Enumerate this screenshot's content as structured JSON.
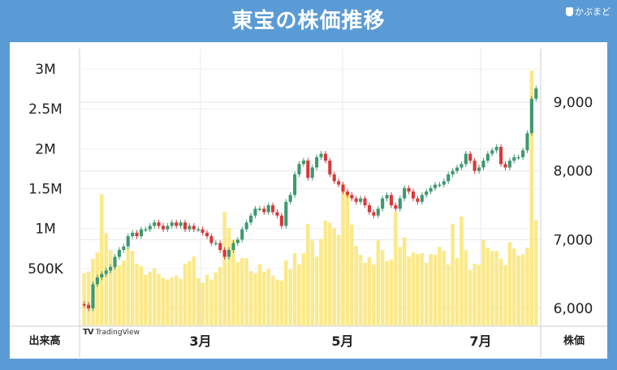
{
  "title": "東宝の株価推移",
  "brand": "かぶまど",
  "footer": {
    "left": "出来高",
    "right": "株価",
    "tradingview": "TradingView"
  },
  "colors": {
    "background": "#5b9bd5",
    "up": "#3d9970",
    "down": "#d9383a",
    "volume": "#fbe98a"
  },
  "chart_data": {
    "type": "candlestick",
    "x_ticks": [
      "3月",
      "5月",
      "7月"
    ],
    "price_axis": {
      "ticks": [
        "6,000",
        "7,000",
        "8,000",
        "9,000"
      ],
      "range": [
        5950,
        9600
      ]
    },
    "volume_axis": {
      "ticks": [
        "500K",
        "1M",
        "1.5M",
        "2M",
        "2.5M",
        "3M"
      ],
      "range": [
        0,
        3200000
      ]
    },
    "grid": true,
    "close": [
      6050,
      6000,
      6350,
      6450,
      6500,
      6550,
      6600,
      6750,
      6850,
      6900,
      7050,
      7100,
      7050,
      7150,
      7150,
      7200,
      7250,
      7200,
      7150,
      7200,
      7250,
      7200,
      7250,
      7150,
      7200,
      7150,
      7150,
      7100,
      7050,
      6950,
      6950,
      6850,
      6750,
      6850,
      6950,
      7000,
      7150,
      7250,
      7350,
      7450,
      7450,
      7400,
      7500,
      7400,
      7350,
      7200,
      7550,
      7650,
      7950,
      8100,
      8150,
      7900,
      8050,
      8200,
      8250,
      8150,
      7950,
      7850,
      7800,
      7700,
      7650,
      7600,
      7550,
      7600,
      7500,
      7400,
      7350,
      7450,
      7600,
      7650,
      7500,
      7450,
      7600,
      7750,
      7700,
      7600,
      7550,
      7650,
      7700,
      7750,
      7800,
      7800,
      7850,
      7950,
      8000,
      8050,
      8100,
      8250,
      8150,
      8000,
      8050,
      8150,
      8250,
      8300,
      8350,
      8100,
      8050,
      8150,
      8200,
      8200,
      8300,
      8550,
      9050,
      9200
    ],
    "volume": [
      440000,
      460000,
      620000,
      700000,
      1430000,
      940000,
      730000,
      530000,
      540000,
      600000,
      750000,
      720000,
      560000,
      530000,
      420000,
      460000,
      500000,
      430000,
      380000,
      360000,
      390000,
      410000,
      370000,
      560000,
      590000,
      650000,
      380000,
      320000,
      420000,
      360000,
      450000,
      520000,
      1210000,
      1010000,
      860000,
      580000,
      630000,
      630000,
      470000,
      440000,
      550000,
      460000,
      490000,
      410000,
      360000,
      350000,
      600000,
      490000,
      690000,
      550000,
      690000,
      1060000,
      850000,
      650000,
      870000,
      1100000,
      1070000,
      1010000,
      920000,
      1560000,
      1430000,
      1050000,
      780000,
      670000,
      570000,
      640000,
      550000,
      850000,
      730000,
      590000,
      610000,
      1210000,
      770000,
      890000,
      650000,
      700000,
      680000,
      690000,
      570000,
      680000,
      670000,
      770000,
      720000,
      550000,
      1060000,
      630000,
      1150000,
      730000,
      480000,
      560000,
      550000,
      860000,
      760000,
      720000,
      720000,
      620000,
      540000,
      830000,
      750000,
      660000,
      680000,
      760000,
      2980000,
      1100000
    ]
  }
}
